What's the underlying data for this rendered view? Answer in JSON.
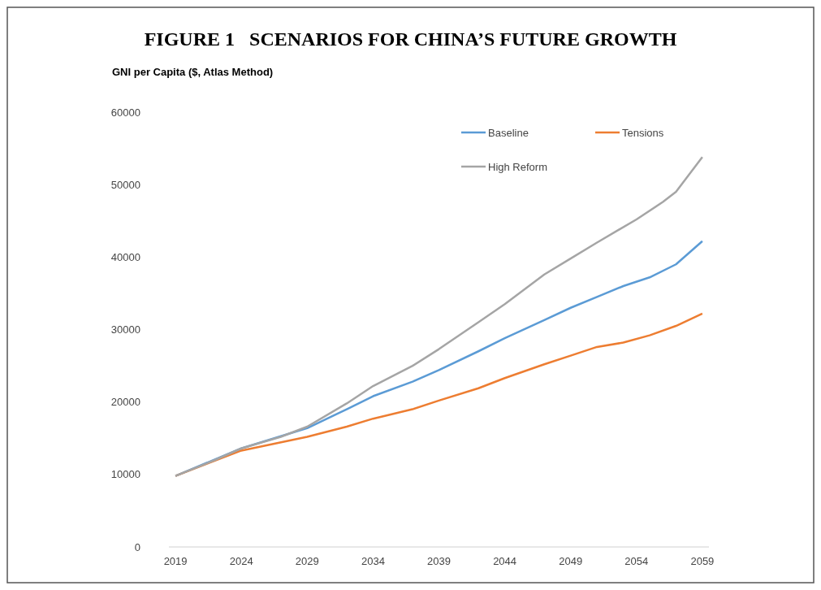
{
  "chart_data": {
    "type": "line",
    "title": "FIGURE 1   SCENARIOS FOR CHINA’S FUTURE GROWTH",
    "ylabel": "GNI per Capita ($, Atlas Method)",
    "xlim": [
      2018.5,
      2059.5
    ],
    "xticks": [
      2019,
      2024,
      2029,
      2034,
      2039,
      2044,
      2049,
      2054,
      2059
    ],
    "ylim": [
      0,
      60000
    ],
    "yticks": [
      0,
      10000,
      20000,
      30000,
      40000,
      50000,
      60000
    ],
    "grid": false,
    "legend": "top right",
    "marker": "none",
    "line_style": "solid",
    "series": [
      {
        "name": "Baseline",
        "color": "#5b9bd5",
        "x": [
          2019,
          2024,
          2029,
          2032,
          2034,
          2037,
          2039,
          2042,
          2044,
          2047,
          2049,
          2051,
          2053,
          2055,
          2057,
          2059
        ],
        "values": [
          9800,
          13600,
          16400,
          19000,
          20800,
          22800,
          24400,
          27000,
          28800,
          31300,
          33000,
          34500,
          36000,
          37200,
          39000,
          42200
        ]
      },
      {
        "name": "Tensions",
        "color": "#ed7d31",
        "x": [
          2019,
          2024,
          2029,
          2032,
          2034,
          2037,
          2039,
          2042,
          2044,
          2047,
          2049,
          2051,
          2053,
          2055,
          2057,
          2059
        ],
        "values": [
          9800,
          13300,
          15200,
          16600,
          17700,
          19000,
          20200,
          21900,
          23300,
          25200,
          26400,
          27600,
          28200,
          29200,
          30500,
          32200
        ]
      },
      {
        "name": "High Reform",
        "color": "#a5a5a5",
        "x": [
          2019,
          2022,
          2024,
          2027,
          2029,
          2032,
          2034,
          2037,
          2039,
          2042,
          2044,
          2047,
          2049,
          2051,
          2054,
          2056,
          2057,
          2059
        ],
        "values": [
          9800,
          12000,
          13600,
          15200,
          16600,
          19800,
          22200,
          25000,
          27300,
          31000,
          33500,
          37600,
          39800,
          42000,
          45200,
          47600,
          49000,
          53800
        ]
      }
    ]
  }
}
